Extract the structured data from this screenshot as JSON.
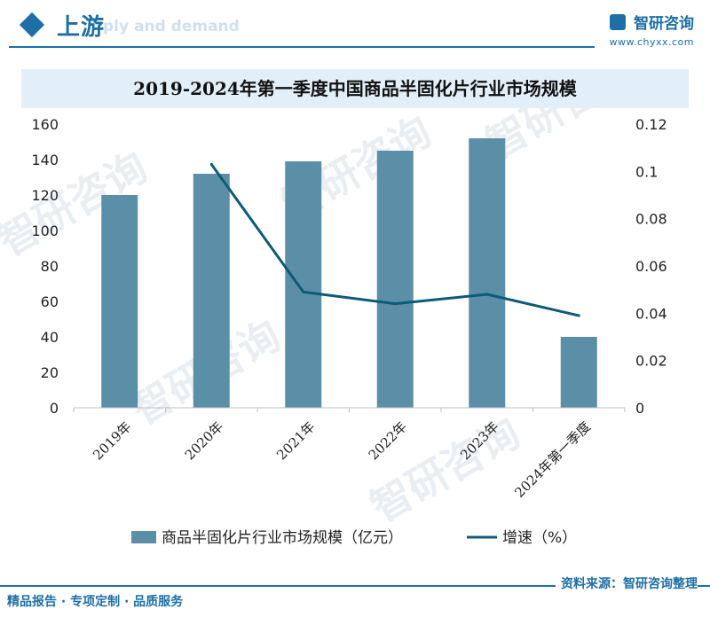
{
  "header": {
    "section_title": "上游",
    "section_ghost": "ply and demand",
    "brand_name": "智研咨询",
    "brand_url": "www.chyxx.com"
  },
  "footer": {
    "left": "精品报告 · 专项定制 · 品质服务",
    "right": "资料来源：智研咨询整理"
  },
  "watermark": {
    "text": "智研咨询"
  },
  "colors": {
    "bar": "#5b8fa8",
    "line": "#0e5a78",
    "accent": "#1d6fa5",
    "title_band": "#e3eff8"
  },
  "chart_data": {
    "type": "bar",
    "title": "2019-2024年第一季度中国商品半固化片行业市场规模",
    "categories": [
      "2019年",
      "2020年",
      "2021年",
      "2022年",
      "2023年",
      "2024年第一季度"
    ],
    "series": [
      {
        "name": "商品半固化片行业市场规模（亿元）",
        "type": "bar",
        "axis": "left",
        "values": [
          120,
          132,
          139,
          145,
          152,
          40
        ]
      },
      {
        "name": "增速（%）",
        "type": "line",
        "axis": "right",
        "values": [
          null,
          0.103,
          0.049,
          0.044,
          0.048,
          0.039
        ]
      }
    ],
    "y_left": {
      "min": 0,
      "max": 160,
      "ticks": [
        "0",
        "20",
        "40",
        "60",
        "80",
        "100",
        "120",
        "140",
        "160"
      ]
    },
    "y_right": {
      "min": 0,
      "max": 0.12,
      "ticks": [
        "0",
        "0.02",
        "0.04",
        "0.06",
        "0.08",
        "0.1",
        "0.12"
      ]
    },
    "grid": false,
    "legend": "bottom"
  }
}
